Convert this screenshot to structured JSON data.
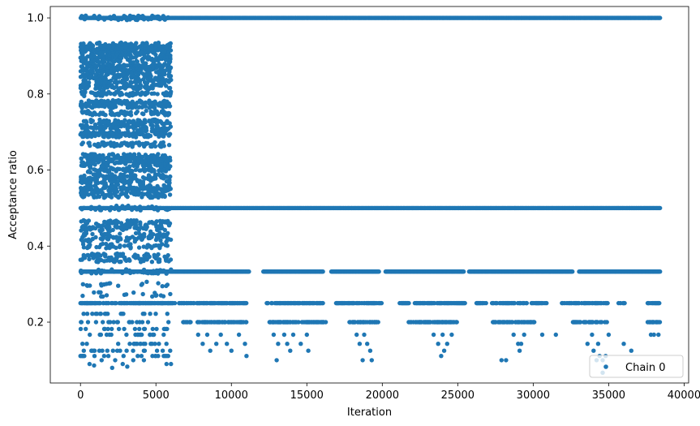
{
  "chart_data": {
    "type": "scatter",
    "xlabel": "Iteration",
    "ylabel": "Acceptance ratio",
    "xlim": [
      -2000,
      40300
    ],
    "ylim": [
      0.04,
      1.03
    ],
    "xticks": [
      0,
      5000,
      10000,
      15000,
      20000,
      25000,
      30000,
      35000,
      40000
    ],
    "xtick_labels": [
      "0",
      "5000",
      "10000",
      "15000",
      "20000",
      "25000",
      "30000",
      "35000",
      "40000"
    ],
    "yticks": [
      0.2,
      0.4,
      0.6,
      0.8,
      1.0
    ],
    "ytick_labels": [
      "0.2",
      "0.4",
      "0.6",
      "0.8",
      "1.0"
    ],
    "grid": false,
    "legend_position": "bottom-right",
    "series": [
      {
        "name": "Chain 0",
        "color": "#1f77b4",
        "marker": "circle",
        "bands": [
          {
            "y": 1.0,
            "x": [
              0,
              38400
            ]
          },
          {
            "y": 0.5,
            "x": [
              0,
              38400
            ]
          },
          {
            "y": 0.333,
            "x": [
              0,
              38400
            ],
            "gaps": [
              [
                11200,
                12100
              ],
              [
                16100,
                16600
              ],
              [
                19800,
                20200
              ],
              [
                25400,
                25700
              ],
              [
                32600,
                33000
              ]
            ]
          },
          {
            "y": 0.25,
            "x": [
              0,
              38400
            ],
            "gaps": [
              [
                6300,
                6500
              ],
              [
                11000,
                12300
              ],
              [
                16100,
                16900
              ],
              [
                20000,
                21100
              ],
              [
                21800,
                22100
              ],
              [
                25500,
                26200
              ],
              [
                27000,
                27200
              ],
              [
                29600,
                29800
              ],
              [
                31000,
                31900
              ],
              [
                35000,
                35600
              ],
              [
                36200,
                37500
              ]
            ]
          },
          {
            "y": 0.2,
            "x": [
              6800,
              38400
            ],
            "gaps": [
              [
                7300,
                7700
              ],
              [
                11000,
                12500
              ],
              [
                16300,
                17800
              ],
              [
                19800,
                21700
              ],
              [
                25000,
                27300
              ],
              [
                30100,
                32600
              ],
              [
                35000,
                37500
              ]
            ]
          }
        ],
        "early_levels_x": [
          0,
          6000
        ],
        "early_levels": [
          0.111,
          0.125,
          0.143,
          0.167,
          0.182,
          0.2,
          0.222,
          0.25,
          0.273,
          0.3,
          0.333,
          0.364,
          0.375,
          0.4,
          0.417,
          0.429,
          0.444,
          0.455,
          0.462,
          0.5,
          0.533,
          0.545,
          0.556,
          0.571,
          0.583,
          0.6,
          0.615,
          0.625,
          0.636,
          0.667,
          0.692,
          0.7,
          0.714,
          0.727,
          0.75,
          0.769,
          0.778,
          0.8,
          0.818,
          0.833,
          0.846,
          0.857,
          0.867,
          0.875,
          0.889,
          0.9,
          0.909,
          0.917,
          0.923,
          0.929,
          1.0
        ],
        "sparse_points": [
          [
            0,
            0.111
          ],
          [
            600,
            0.09
          ],
          [
            900,
            0.086
          ],
          [
            1400,
            0.1
          ],
          [
            2100,
            0.08
          ],
          [
            2300,
            0.1
          ],
          [
            2800,
            0.09
          ],
          [
            3100,
            0.083
          ],
          [
            3500,
            0.1
          ],
          [
            4200,
            0.1
          ],
          [
            5700,
            0.09
          ],
          [
            6000,
            0.09
          ],
          [
            7800,
            0.167
          ],
          [
            8100,
            0.143
          ],
          [
            8400,
            0.167
          ],
          [
            8600,
            0.125
          ],
          [
            9000,
            0.143
          ],
          [
            9300,
            0.167
          ],
          [
            9700,
            0.143
          ],
          [
            10000,
            0.125
          ],
          [
            10500,
            0.167
          ],
          [
            10900,
            0.143
          ],
          [
            11000,
            0.111
          ],
          [
            12800,
            0.167
          ],
          [
            13100,
            0.143
          ],
          [
            13500,
            0.167
          ],
          [
            13700,
            0.143
          ],
          [
            13900,
            0.125
          ],
          [
            14100,
            0.167
          ],
          [
            14600,
            0.143
          ],
          [
            15000,
            0.167
          ],
          [
            15100,
            0.125
          ],
          [
            13000,
            0.1
          ],
          [
            18300,
            0.167
          ],
          [
            18500,
            0.143
          ],
          [
            18800,
            0.167
          ],
          [
            19000,
            0.143
          ],
          [
            19200,
            0.125
          ],
          [
            18700,
            0.1
          ],
          [
            19300,
            0.1
          ],
          [
            23400,
            0.167
          ],
          [
            23700,
            0.143
          ],
          [
            24000,
            0.167
          ],
          [
            24100,
            0.125
          ],
          [
            24300,
            0.143
          ],
          [
            24600,
            0.167
          ],
          [
            23900,
            0.111
          ],
          [
            27900,
            0.1
          ],
          [
            28200,
            0.1
          ],
          [
            28700,
            0.167
          ],
          [
            29000,
            0.143
          ],
          [
            29100,
            0.125
          ],
          [
            29400,
            0.167
          ],
          [
            29200,
            0.143
          ],
          [
            30600,
            0.167
          ],
          [
            31500,
            0.167
          ],
          [
            33600,
            0.143
          ],
          [
            33900,
            0.167
          ],
          [
            34000,
            0.125
          ],
          [
            34300,
            0.143
          ],
          [
            34400,
            0.111
          ],
          [
            34600,
            0.1
          ],
          [
            34800,
            0.111
          ],
          [
            35000,
            0.167
          ],
          [
            34200,
            0.1
          ],
          [
            34600,
            0.067
          ],
          [
            36000,
            0.143
          ],
          [
            36500,
            0.125
          ],
          [
            37800,
            0.167
          ],
          [
            38000,
            0.167
          ],
          [
            38300,
            0.167
          ]
        ]
      }
    ]
  }
}
